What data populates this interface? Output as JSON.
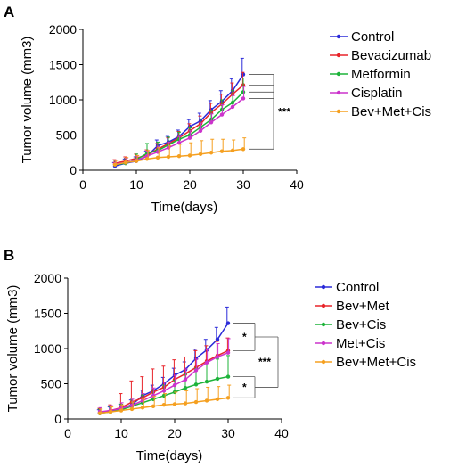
{
  "chart_data": [
    {
      "panel_label": "A",
      "type": "line",
      "xlabel": "Time(days)",
      "ylabel": "Tumor volume (mm3)",
      "xlim": [
        0,
        40
      ],
      "ylim": [
        0,
        2000
      ],
      "xticks": [
        "0",
        "10",
        "20",
        "30",
        "40"
      ],
      "yticks": [
        "0",
        "500",
        "1000",
        "1500",
        "2000"
      ],
      "legend_position": "right",
      "x": [
        6,
        8,
        10,
        12,
        14,
        16,
        18,
        20,
        22,
        24,
        26,
        28,
        30
      ],
      "series": [
        {
          "name": "Control",
          "color": "#2b2bd9",
          "values": [
            60,
            100,
            130,
            200,
            350,
            400,
            480,
            620,
            700,
            860,
            980,
            1130,
            1360
          ],
          "errors": [
            50,
            60,
            60,
            70,
            80,
            80,
            90,
            100,
            110,
            130,
            150,
            170,
            230
          ]
        },
        {
          "name": "Bevacizumab",
          "color": "#e8242a",
          "values": [
            100,
            130,
            170,
            220,
            300,
            380,
            460,
            560,
            660,
            820,
            940,
            1080,
            1210
          ],
          "errors": [
            50,
            60,
            60,
            70,
            80,
            80,
            90,
            100,
            110,
            130,
            140,
            160,
            180
          ]
        },
        {
          "name": "Metformin",
          "color": "#1db33a",
          "values": [
            80,
            100,
            150,
            240,
            280,
            360,
            440,
            500,
            610,
            720,
            860,
            960,
            1110
          ],
          "errors": [
            60,
            70,
            80,
            140,
            120,
            110,
            100,
            100,
            120,
            130,
            140,
            170,
            200
          ]
        },
        {
          "name": "Cisplatin",
          "color": "#cc33cc",
          "values": [
            90,
            110,
            140,
            200,
            260,
            320,
            390,
            460,
            560,
            680,
            790,
            900,
            1020
          ],
          "errors": [
            50,
            60,
            60,
            70,
            80,
            80,
            90,
            100,
            110,
            120,
            140,
            160,
            170
          ]
        },
        {
          "name": "Bev+Met+Cis",
          "color": "#f5a020",
          "values": [
            80,
            110,
            130,
            160,
            180,
            190,
            200,
            210,
            230,
            250,
            270,
            280,
            300
          ],
          "errors": [
            60,
            70,
            80,
            120,
            140,
            160,
            170,
            180,
            190,
            190,
            170,
            150,
            160
          ]
        }
      ],
      "annotations": [
        {
          "text": "***",
          "between": [
            "Control",
            "Bev+Met+Cis"
          ]
        }
      ]
    },
    {
      "panel_label": "B",
      "type": "line",
      "xlabel": "Time(days)",
      "ylabel": "Tumor volume (mm3)",
      "xlim": [
        0,
        40
      ],
      "ylim": [
        0,
        2000
      ],
      "xticks": [
        "0",
        "10",
        "20",
        "30",
        "40"
      ],
      "yticks": [
        "0",
        "500",
        "1000",
        "1500",
        "2000"
      ],
      "legend_position": "right",
      "x": [
        6,
        8,
        10,
        12,
        14,
        16,
        18,
        20,
        22,
        24,
        26,
        28,
        30
      ],
      "series": [
        {
          "name": "Control",
          "color": "#2b2bd9",
          "values": [
            80,
            110,
            150,
            200,
            330,
            400,
            500,
            620,
            700,
            860,
            980,
            1130,
            1360
          ],
          "errors": [
            50,
            60,
            60,
            70,
            80,
            80,
            90,
            100,
            110,
            130,
            150,
            170,
            230
          ]
        },
        {
          "name": "Bev+Met",
          "color": "#e8242a",
          "values": [
            90,
            120,
            160,
            240,
            300,
            380,
            450,
            560,
            640,
            730,
            820,
            900,
            970
          ],
          "errors": [
            60,
            80,
            200,
            300,
            300,
            330,
            300,
            280,
            240,
            240,
            220,
            200,
            180
          ]
        },
        {
          "name": "Bev+Cis",
          "color": "#1db33a",
          "values": [
            80,
            100,
            130,
            180,
            230,
            280,
            330,
            380,
            440,
            490,
            530,
            570,
            600
          ],
          "errors": [
            60,
            70,
            80,
            100,
            110,
            130,
            150,
            170,
            200,
            230,
            260,
            280,
            300
          ]
        },
        {
          "name": "Met+Cis",
          "color": "#cc33cc",
          "values": [
            100,
            120,
            150,
            190,
            260,
            330,
            400,
            480,
            560,
            690,
            800,
            880,
            940
          ],
          "errors": [
            60,
            70,
            80,
            90,
            100,
            110,
            120,
            140,
            150,
            160,
            180,
            190,
            200
          ]
        },
        {
          "name": "Bev+Met+Cis",
          "color": "#f5a020",
          "values": [
            80,
            100,
            120,
            140,
            160,
            180,
            200,
            210,
            220,
            240,
            260,
            280,
            300
          ],
          "errors": [
            60,
            70,
            80,
            100,
            120,
            140,
            160,
            170,
            180,
            190,
            190,
            180,
            180
          ]
        }
      ],
      "annotations": [
        {
          "text": "*",
          "between": [
            "Control",
            "Bev+Met"
          ]
        },
        {
          "text": "*",
          "between": [
            "Bev+Cis",
            "Bev+Met+Cis"
          ]
        },
        {
          "text": "***",
          "between": [
            "Control",
            "Bev+Met+Cis"
          ]
        }
      ]
    }
  ]
}
